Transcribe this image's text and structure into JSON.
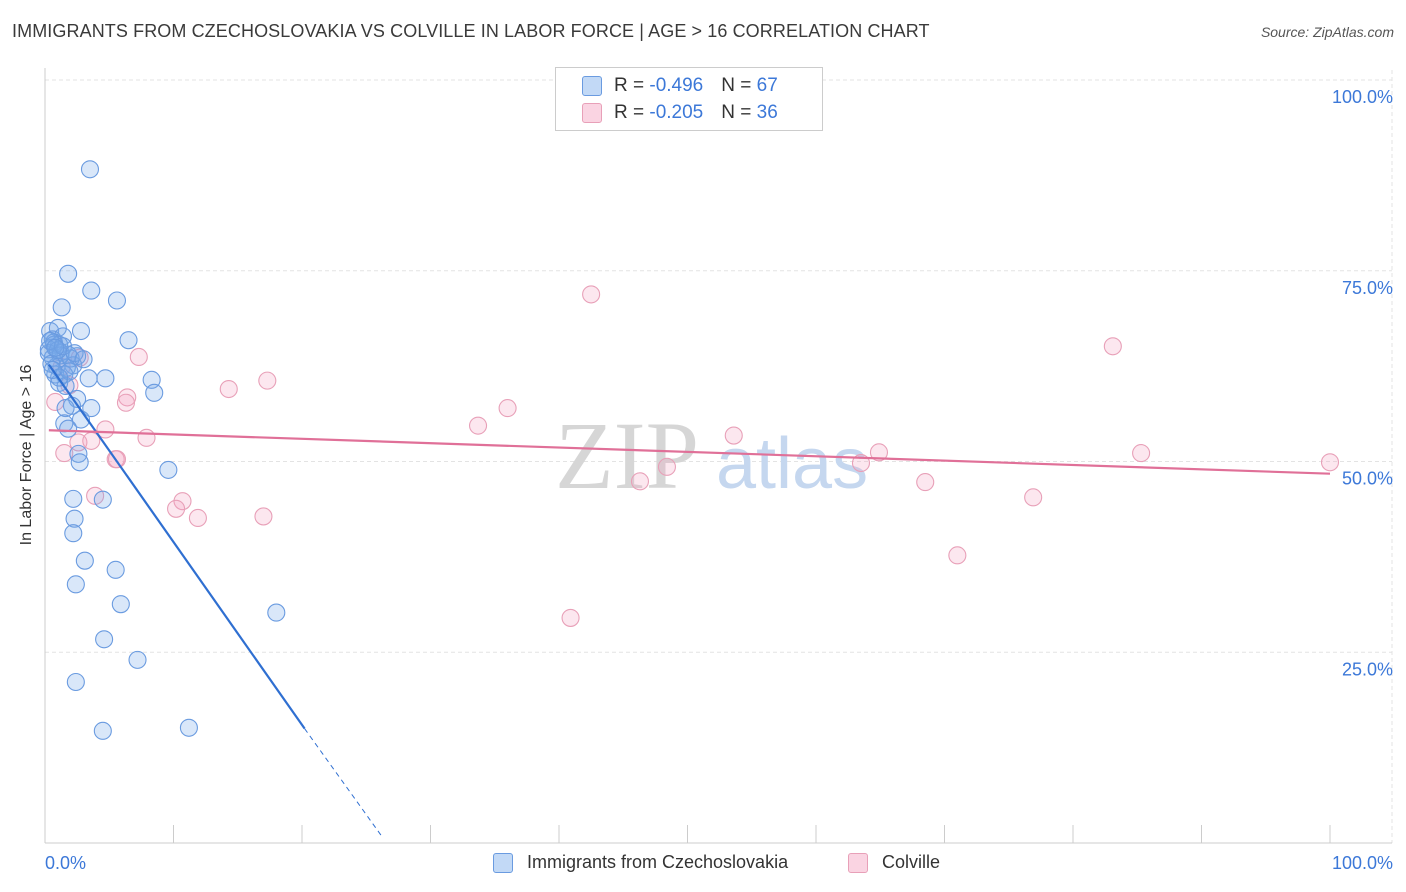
{
  "title": "IMMIGRANTS FROM CZECHOSLOVAKIA VS COLVILLE IN LABOR FORCE | AGE > 16 CORRELATION CHART",
  "source": "Source: ZipAtlas.com",
  "watermark": {
    "zip": "ZIP",
    "atlas": "atlas"
  },
  "legend": {
    "rows": [
      {
        "r_label": "R = ",
        "r_value": "-0.496",
        "n_label": "N = ",
        "n_value": "67"
      },
      {
        "r_label": "R = ",
        "r_value": "-0.205",
        "n_label": "N = ",
        "n_value": "36"
      }
    ]
  },
  "bottom_legend": [
    {
      "label": "Immigrants from Czechoslovakia"
    },
    {
      "label": "Colville"
    }
  ],
  "colors": {
    "blue_fill": "rgba(120,170,235,0.28)",
    "blue_stroke": "#6a9be0",
    "blue_line": "#2f6fd1",
    "pink_fill": "rgba(245,160,190,0.25)",
    "pink_stroke": "#e8a0b8",
    "pink_line": "#e07098",
    "tick_label": "#3c78d8",
    "grid": "#e3e3e3"
  },
  "chart_data": {
    "type": "scatter",
    "title": "IMMIGRANTS FROM CZECHOSLOVAKIA VS COLVILLE IN LABOR FORCE | AGE > 16 CORRELATION CHART",
    "xlabel": "",
    "ylabel": "In Labor Force | Age > 16",
    "xlim": [
      0,
      100
    ],
    "ylim": [
      0,
      100
    ],
    "x_tick_labels": [
      "0.0%",
      "100.0%"
    ],
    "y_ticks": [
      25,
      50,
      75,
      100
    ],
    "y_tick_labels": [
      "25.0%",
      "50.0%",
      "75.0%",
      "100.0%"
    ],
    "grid": true,
    "series": [
      {
        "name": "Immigrants from Czechoslovakia",
        "points": [
          [
            3.5,
            88.3
          ],
          [
            1.8,
            74.6
          ],
          [
            3.6,
            72.4
          ],
          [
            5.6,
            71.1
          ],
          [
            1.3,
            70.2
          ],
          [
            0.4,
            67.1
          ],
          [
            1.0,
            67.5
          ],
          [
            2.8,
            67.1
          ],
          [
            0.6,
            66.0
          ],
          [
            1.4,
            66.4
          ],
          [
            0.7,
            65.6
          ],
          [
            1.1,
            65.3
          ],
          [
            6.5,
            65.9
          ],
          [
            0.3,
            64.7
          ],
          [
            0.7,
            65.3
          ],
          [
            1.2,
            64.3
          ],
          [
            1.8,
            64.0
          ],
          [
            2.5,
            63.8
          ],
          [
            0.6,
            63.6
          ],
          [
            0.9,
            62.5
          ],
          [
            2.2,
            62.6
          ],
          [
            1.7,
            62.3
          ],
          [
            0.8,
            61.4
          ],
          [
            1.5,
            61.4
          ],
          [
            3.4,
            60.9
          ],
          [
            4.7,
            60.9
          ],
          [
            8.3,
            60.7
          ],
          [
            1.1,
            60.3
          ],
          [
            1.6,
            59.9
          ],
          [
            8.5,
            59.0
          ],
          [
            2.5,
            58.2
          ],
          [
            2.1,
            57.3
          ],
          [
            1.6,
            57.0
          ],
          [
            3.6,
            57.0
          ],
          [
            2.8,
            55.5
          ],
          [
            1.5,
            55.0
          ],
          [
            1.8,
            54.3
          ],
          [
            2.6,
            51.0
          ],
          [
            2.7,
            49.9
          ],
          [
            9.6,
            48.9
          ],
          [
            2.2,
            45.1
          ],
          [
            4.5,
            45.0
          ],
          [
            2.3,
            42.5
          ],
          [
            2.2,
            40.6
          ],
          [
            3.1,
            37.0
          ],
          [
            5.5,
            35.8
          ],
          [
            2.4,
            33.9
          ],
          [
            5.9,
            31.3
          ],
          [
            18.0,
            30.2
          ],
          [
            4.6,
            26.7
          ],
          [
            7.2,
            24.0
          ],
          [
            2.4,
            21.1
          ],
          [
            4.5,
            14.7
          ],
          [
            11.2,
            15.1
          ],
          [
            0.3,
            64.2
          ],
          [
            1.2,
            63.9
          ],
          [
            0.5,
            62.8
          ],
          [
            2.0,
            63.5
          ],
          [
            1.0,
            64.6
          ],
          [
            0.4,
            65.8
          ],
          [
            1.4,
            65.1
          ],
          [
            0.8,
            64.9
          ],
          [
            1.9,
            61.8
          ],
          [
            2.3,
            64.2
          ],
          [
            1.1,
            61.0
          ],
          [
            3.0,
            63.4
          ],
          [
            0.6,
            62.0
          ]
        ],
        "trend": {
          "x": [
            0.3,
            20.2
          ],
          "y": [
            62.7,
            15.0
          ],
          "dashed_to": {
            "x": 26.2,
            "y": 0.9
          }
        }
      },
      {
        "name": "Colville",
        "points": [
          [
            2.7,
            63.6
          ],
          [
            7.3,
            63.7
          ],
          [
            42.5,
            71.9
          ],
          [
            1.3,
            62.4
          ],
          [
            1.9,
            60.0
          ],
          [
            17.3,
            60.6
          ],
          [
            14.3,
            59.5
          ],
          [
            6.4,
            58.4
          ],
          [
            6.3,
            57.7
          ],
          [
            0.8,
            57.8
          ],
          [
            36.0,
            57.0
          ],
          [
            33.7,
            54.7
          ],
          [
            4.7,
            54.2
          ],
          [
            53.6,
            53.4
          ],
          [
            7.9,
            53.1
          ],
          [
            2.6,
            52.5
          ],
          [
            3.6,
            52.7
          ],
          [
            1.5,
            51.1
          ],
          [
            5.5,
            50.3
          ],
          [
            5.6,
            50.3
          ],
          [
            64.9,
            51.2
          ],
          [
            63.5,
            49.8
          ],
          [
            48.4,
            49.3
          ],
          [
            46.3,
            47.4
          ],
          [
            68.5,
            47.3
          ],
          [
            85.3,
            51.1
          ],
          [
            100.0,
            49.9
          ],
          [
            83.1,
            65.1
          ],
          [
            3.9,
            45.5
          ],
          [
            10.7,
            44.8
          ],
          [
            10.2,
            43.8
          ],
          [
            11.9,
            42.6
          ],
          [
            17.0,
            42.8
          ],
          [
            76.9,
            45.3
          ],
          [
            71.0,
            37.7
          ],
          [
            40.9,
            29.5
          ]
        ],
        "trend": {
          "x": [
            0.3,
            100.0
          ],
          "y": [
            54.1,
            48.4
          ]
        }
      }
    ]
  }
}
